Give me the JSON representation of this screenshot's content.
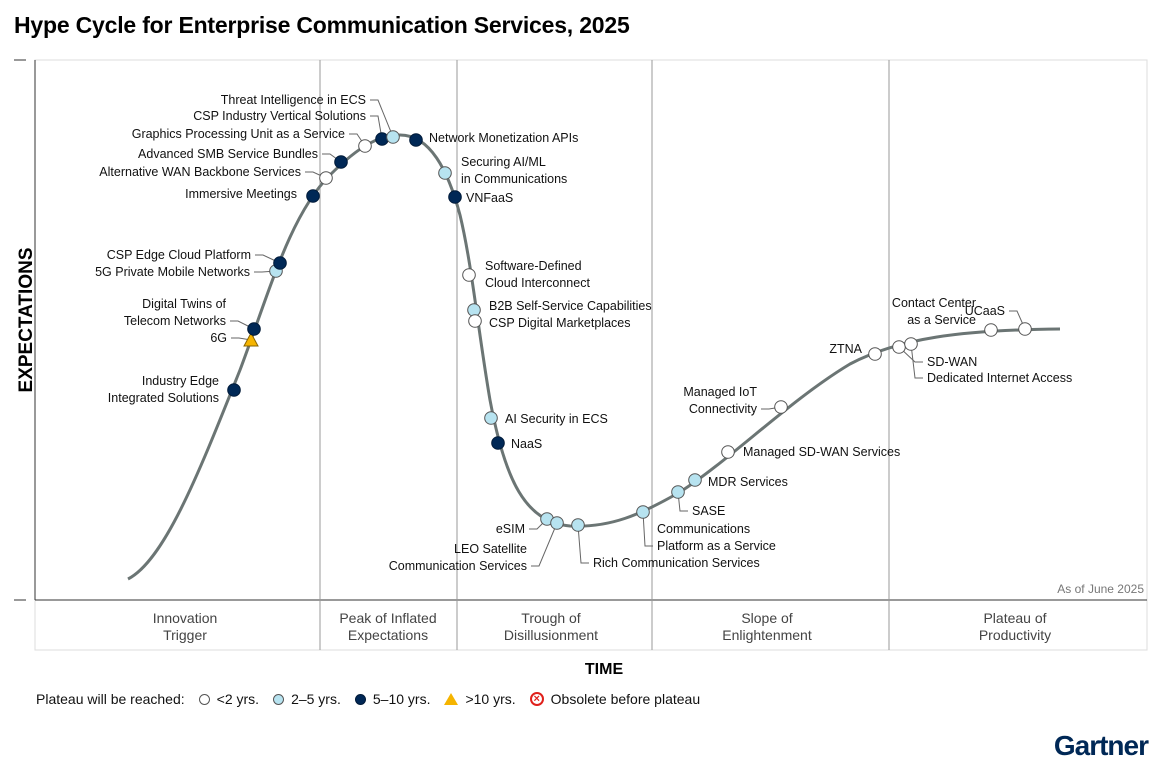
{
  "title": "Hype Cycle for Enterprise Communication Services, 2025",
  "y_axis_label": "EXPECTATIONS",
  "x_axis_label": "TIME",
  "as_of": "As of June 2025",
  "brand": "Gartner",
  "phases": [
    {
      "line1": "Innovation",
      "line2": "Trigger"
    },
    {
      "line1": "Peak of Inflated",
      "line2": "Expectations"
    },
    {
      "line1": "Trough of",
      "line2": "Disillusionment"
    },
    {
      "line1": "Slope of",
      "line2": "Enlightenment"
    },
    {
      "line1": "Plateau of",
      "line2": "Productivity"
    }
  ],
  "legend": {
    "title": "Plateau will be reached:",
    "items": [
      {
        "key": "lt2",
        "label": "<2 yrs."
      },
      {
        "key": "2to5",
        "label": "2–5 yrs."
      },
      {
        "key": "5to10",
        "label": "5–10 yrs."
      },
      {
        "key": "gt10",
        "label": ">10 yrs."
      },
      {
        "key": "obsolete",
        "label": "Obsolete before plateau"
      }
    ]
  },
  "colors": {
    "lt2": "#ffffff",
    "2to5": "#b7e3f0",
    "5to10": "#002856",
    "gt10": "#f5b400",
    "obsolete": "#e0201b",
    "curve": "#6b7574",
    "divider": "#999999"
  },
  "technologies": [
    {
      "lines": [
        "Industry Edge",
        "Integrated Solutions"
      ],
      "cat": "5to10"
    },
    {
      "lines": [
        "6G"
      ],
      "cat": "gt10"
    },
    {
      "lines": [
        "Digital Twins of",
        "Telecom Networks"
      ],
      "cat": "5to10"
    },
    {
      "lines": [
        "5G Private Mobile Networks"
      ],
      "cat": "2to5"
    },
    {
      "lines": [
        "CSP Edge Cloud Platform"
      ],
      "cat": "5to10"
    },
    {
      "lines": [
        "Immersive Meetings"
      ],
      "cat": "5to10"
    },
    {
      "lines": [
        "Alternative WAN Backbone Services"
      ],
      "cat": "lt2"
    },
    {
      "lines": [
        "Advanced SMB Service Bundles"
      ],
      "cat": "5to10"
    },
    {
      "lines": [
        "Graphics Processing Unit as a Service"
      ],
      "cat": "lt2"
    },
    {
      "lines": [
        "CSP Industry Vertical Solutions"
      ],
      "cat": "5to10"
    },
    {
      "lines": [
        "Threat Intelligence in ECS"
      ],
      "cat": "2to5"
    },
    {
      "lines": [
        "Network Monetization APIs"
      ],
      "cat": "5to10"
    },
    {
      "lines": [
        "Securing AI/ML",
        "in Communications"
      ],
      "cat": "2to5"
    },
    {
      "lines": [
        "VNFaaS"
      ],
      "cat": "5to10"
    },
    {
      "lines": [
        "Software-Defined",
        "Cloud Interconnect"
      ],
      "cat": "lt2"
    },
    {
      "lines": [
        "B2B Self-Service Capabilities"
      ],
      "cat": "2to5"
    },
    {
      "lines": [
        "CSP Digital Marketplaces"
      ],
      "cat": "lt2"
    },
    {
      "lines": [
        "AI Security in ECS"
      ],
      "cat": "2to5"
    },
    {
      "lines": [
        "NaaS"
      ],
      "cat": "5to10"
    },
    {
      "lines": [
        "eSIM"
      ],
      "cat": "2to5"
    },
    {
      "lines": [
        "LEO Satellite",
        "Communication Services"
      ],
      "cat": "2to5"
    },
    {
      "lines": [
        "Rich Communication Services"
      ],
      "cat": "2to5"
    },
    {
      "lines": [
        "Communications",
        "Platform as a Service"
      ],
      "cat": "2to5"
    },
    {
      "lines": [
        "SASE"
      ],
      "cat": "2to5"
    },
    {
      "lines": [
        "MDR Services"
      ],
      "cat": "2to5"
    },
    {
      "lines": [
        "Managed SD-WAN Services"
      ],
      "cat": "lt2"
    },
    {
      "lines": [
        "Managed IoT",
        "Connectivity"
      ],
      "cat": "lt2"
    },
    {
      "lines": [
        "ZTNA"
      ],
      "cat": "lt2"
    },
    {
      "lines": [
        "SD-WAN"
      ],
      "cat": "lt2"
    },
    {
      "lines": [
        "Dedicated Internet Access"
      ],
      "cat": "lt2"
    },
    {
      "lines": [
        "Contact Center",
        "as a Service"
      ],
      "cat": "lt2"
    },
    {
      "lines": [
        "UCaaS"
      ],
      "cat": "lt2"
    }
  ]
}
